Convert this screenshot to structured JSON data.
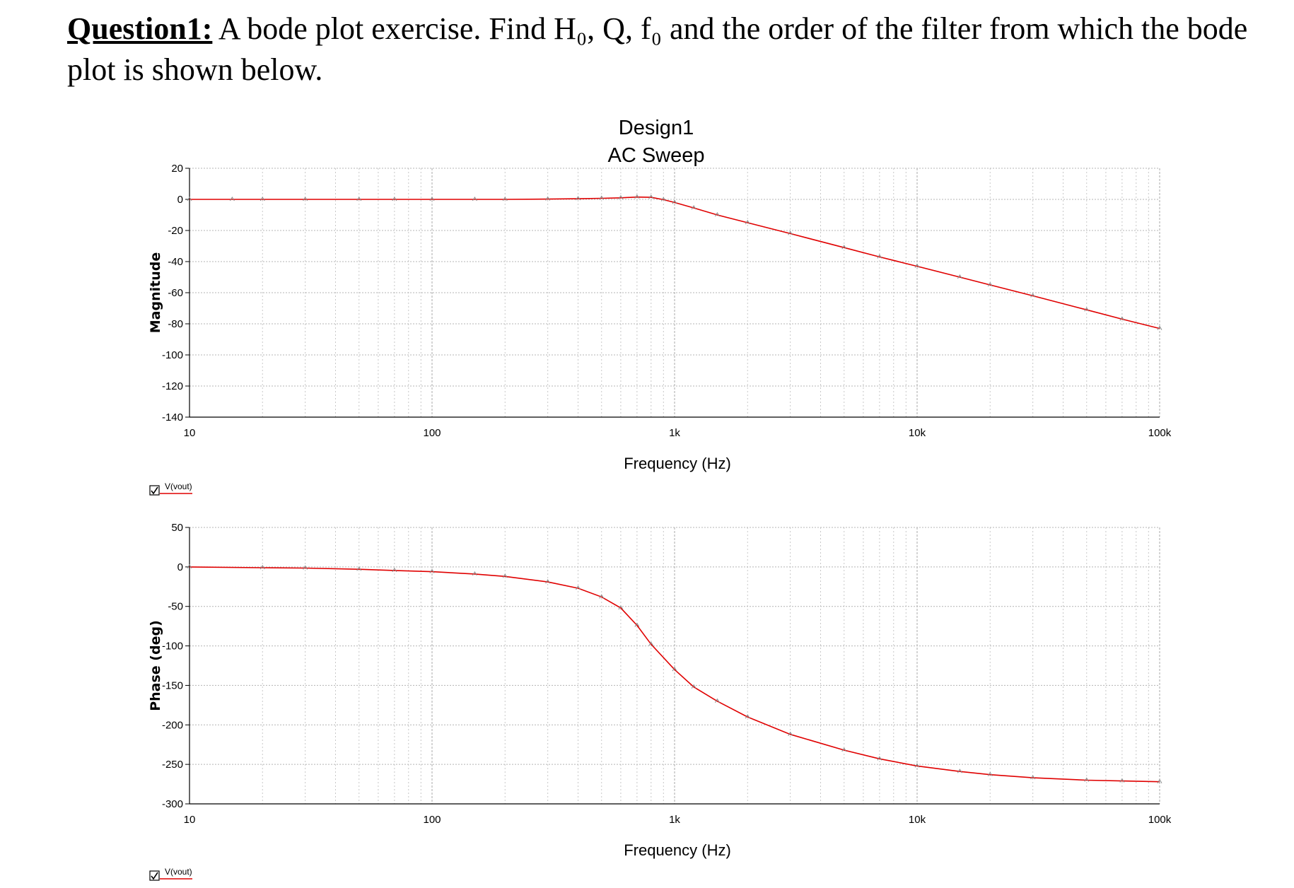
{
  "question": {
    "label": "Question1:",
    "text": " A bode plot exercise. Find H₀, Q, f₀ and the order of the filter from which the bode plot is shown below."
  },
  "plot": {
    "title_line1": "Design1",
    "title_line2": "AC Sweep",
    "legend_label": "V(vout)"
  },
  "chart_data": [
    {
      "type": "line",
      "title": "Design1 AC Sweep",
      "xlabel": "Frequency (Hz)",
      "ylabel": "Magnitude",
      "xscale": "log",
      "xlim": [
        10,
        100000
      ],
      "ylim": [
        -140,
        20
      ],
      "x_ticks": [
        10,
        100,
        1000,
        10000,
        100000
      ],
      "x_tick_labels": [
        "10",
        "100",
        "1k",
        "10k",
        "100k"
      ],
      "y_ticks": [
        20,
        0,
        -20,
        -40,
        -60,
        -80,
        -100,
        -120,
        -140
      ],
      "grid": true,
      "legend": "bottom-left",
      "line_color": "#e00000",
      "series": [
        {
          "name": "V(vout)",
          "x": [
            10,
            15,
            20,
            30,
            50,
            70,
            100,
            150,
            200,
            300,
            400,
            500,
            600,
            700,
            800,
            900,
            1000,
            1200,
            1500,
            2000,
            3000,
            5000,
            7000,
            10000,
            15000,
            20000,
            30000,
            50000,
            70000,
            100000
          ],
          "values": [
            0,
            0,
            0,
            0,
            0,
            0,
            0,
            0,
            0,
            0.2,
            0.4,
            0.7,
            1.0,
            1.5,
            1.3,
            -0.2,
            -2,
            -5.5,
            -10,
            -15,
            -22,
            -31,
            -37,
            -43,
            -50,
            -55,
            -62,
            -71,
            -77,
            -83
          ]
        }
      ]
    },
    {
      "type": "line",
      "xlabel": "Frequency (Hz)",
      "ylabel": "Phase (deg)",
      "xscale": "log",
      "xlim": [
        10,
        100000
      ],
      "ylim": [
        -300,
        50
      ],
      "x_ticks": [
        10,
        100,
        1000,
        10000,
        100000
      ],
      "x_tick_labels": [
        "10",
        "100",
        "1k",
        "10k",
        "100k"
      ],
      "y_ticks": [
        50,
        0,
        -50,
        -100,
        -150,
        -200,
        -250,
        -300
      ],
      "grid": true,
      "legend": "bottom-left",
      "line_color": "#e00000",
      "series": [
        {
          "name": "V(vout)",
          "x": [
            10,
            20,
            30,
            50,
            70,
            100,
            150,
            200,
            300,
            400,
            500,
            600,
            700,
            800,
            1000,
            1200,
            1500,
            2000,
            3000,
            5000,
            7000,
            10000,
            15000,
            20000,
            30000,
            50000,
            70000,
            100000
          ],
          "values": [
            0,
            -1,
            -1.5,
            -3,
            -4.5,
            -6,
            -9,
            -12,
            -19,
            -27,
            -38,
            -52,
            -74,
            -98,
            -130,
            -152,
            -170,
            -190,
            -212,
            -232,
            -243,
            -252,
            -259,
            -263,
            -267,
            -270,
            -271,
            -272
          ]
        }
      ]
    }
  ]
}
